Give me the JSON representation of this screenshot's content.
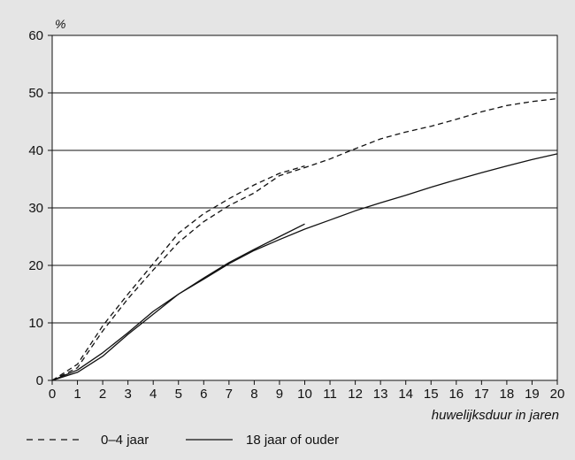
{
  "chart_data": {
    "type": "line",
    "title": "",
    "ylabel": "%",
    "xlabel": "huwelijksduur in jaren",
    "xlim": [
      0,
      20
    ],
    "ylim": [
      0,
      60
    ],
    "x_ticks": [
      0,
      1,
      2,
      3,
      4,
      5,
      6,
      7,
      8,
      9,
      10,
      11,
      12,
      13,
      14,
      15,
      16,
      17,
      18,
      19,
      20
    ],
    "y_ticks": [
      0,
      10,
      20,
      30,
      40,
      50,
      60
    ],
    "grid": "horizontal",
    "legend_position": "bottom",
    "legend": [
      {
        "label": "0–4 jaar",
        "style": "dashed"
      },
      {
        "label": "18 jaar of ouder",
        "style": "solid"
      }
    ],
    "series": [
      {
        "name": "0–4 jaar",
        "style": "dashed",
        "x": [
          0,
          1,
          2,
          3,
          4,
          5,
          6,
          7,
          8,
          9,
          10
        ],
        "y": [
          0,
          2.8,
          9.5,
          15,
          20.3,
          25.6,
          29,
          31.6,
          34,
          36,
          37.3
        ]
      },
      {
        "name": "0–4 jaar",
        "style": "dashed",
        "x": [
          0,
          1,
          2,
          3,
          4,
          5,
          6,
          7,
          8,
          9,
          10,
          11,
          12,
          13,
          14,
          15,
          16,
          17,
          18,
          19,
          20
        ],
        "y": [
          0,
          2.2,
          8.6,
          14.2,
          19.2,
          24,
          27.6,
          30.4,
          32.6,
          35.6,
          37,
          38.5,
          40.3,
          42,
          43.2,
          44.2,
          45.4,
          46.7,
          47.8,
          48.5,
          49
        ]
      },
      {
        "name": "18 jaar of ouder",
        "style": "solid",
        "x": [
          0,
          1,
          2,
          3,
          4,
          5,
          6,
          7,
          8,
          9,
          10
        ],
        "y": [
          0,
          1.8,
          4.8,
          8.3,
          12,
          15,
          17.8,
          20.5,
          22.8,
          25,
          27.2
        ]
      },
      {
        "name": "18 jaar of ouder",
        "style": "solid",
        "x": [
          0,
          1,
          2,
          3,
          4,
          5,
          6,
          7,
          8,
          9,
          10,
          11,
          12,
          13,
          14,
          15,
          16,
          17,
          18,
          19,
          20
        ],
        "y": [
          0,
          1.4,
          4.2,
          8,
          11.5,
          15,
          17.6,
          20.3,
          22.6,
          24.5,
          26.3,
          27.9,
          29.5,
          30.9,
          32.2,
          33.6,
          34.9,
          36.1,
          37.3,
          38.4,
          39.4
        ]
      }
    ]
  }
}
